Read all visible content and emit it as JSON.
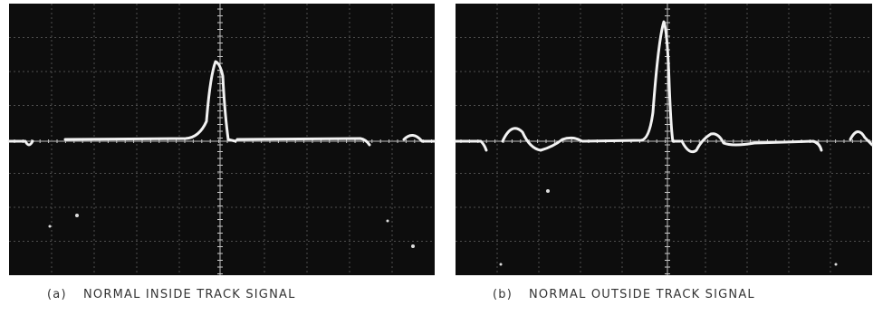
{
  "panels": [
    {
      "label": "(a)",
      "caption": "NORMAL INSIDE TRACK SIGNAL"
    },
    {
      "label": "(b)",
      "caption": "NORMAL OUTSIDE TRACK SIGNAL"
    }
  ]
}
